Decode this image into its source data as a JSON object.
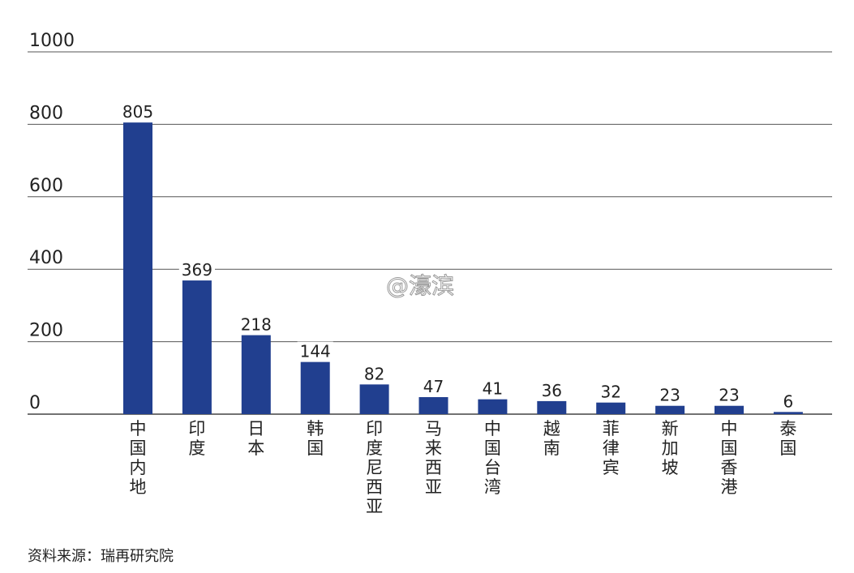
{
  "chart_data": {
    "type": "bar",
    "categories": [
      "中国内地",
      "印度",
      "日本",
      "韩国",
      "印度尼西亚",
      "马来西亚",
      "中国台湾",
      "越南",
      "菲律宾",
      "新加坡",
      "中国香港",
      "泰国"
    ],
    "values": [
      805,
      369,
      218,
      144,
      82,
      47,
      41,
      36,
      32,
      23,
      23,
      6
    ],
    "data_labels": [
      "805",
      "369",
      "218",
      "144",
      "82",
      "47",
      "41",
      "36",
      "32",
      "23",
      "23",
      "6"
    ],
    "y_ticks": [
      "0",
      "200",
      "400",
      "600",
      "800",
      "1000"
    ],
    "ylim": [
      0,
      1000
    ],
    "bar_color": "#213f8f",
    "grid": true,
    "category_label_orientation": "vertical",
    "title": "",
    "xlabel": "",
    "ylabel": ""
  },
  "watermark": "@濠滨",
  "source": "资料来源：瑞再研究院"
}
